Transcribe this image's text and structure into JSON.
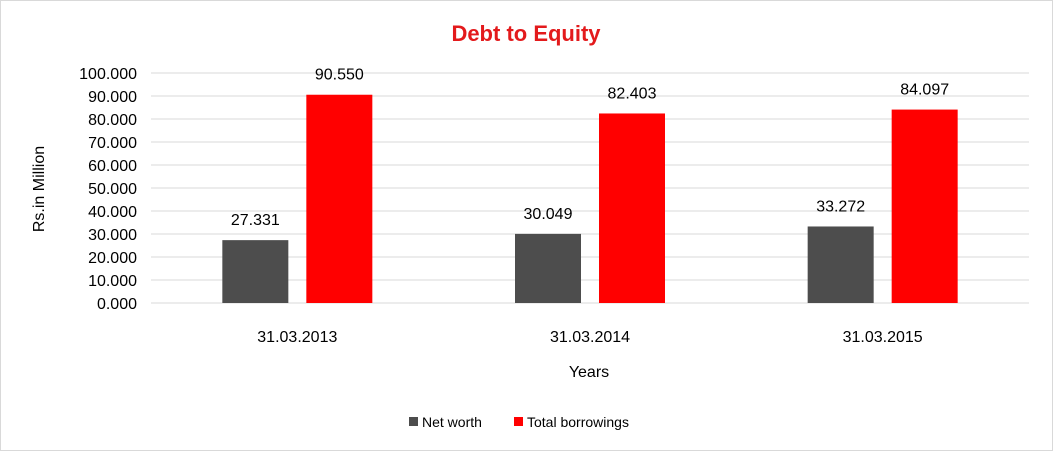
{
  "chart_data": {
    "type": "bar",
    "title": "Debt to Equity",
    "xlabel": "Years",
    "ylabel": "Rs.in Million",
    "categories": [
      "31.03.2013",
      "31.03.2014",
      "31.03.2015"
    ],
    "series": [
      {
        "name": "Net worth",
        "color": "#4d4d4d",
        "values": [
          27.331,
          30.049,
          33.272
        ],
        "labels": [
          "27.331",
          "30.049",
          "33.272"
        ]
      },
      {
        "name": "Total borrowings",
        "color": "#ff0000",
        "values": [
          90.55,
          82.403,
          84.097
        ],
        "labels": [
          "90.550",
          "82.403",
          "84.097"
        ]
      }
    ],
    "ylim": [
      0,
      100
    ],
    "yticks": [
      "0.000",
      "10.000",
      "20.000",
      "30.000",
      "40.000",
      "50.000",
      "60.000",
      "70.000",
      "80.000",
      "90.000",
      "100.000"
    ],
    "grid": true,
    "legend": "bottom",
    "title_color": "#e31a1c",
    "gridline_color": "#d9d9d9"
  }
}
